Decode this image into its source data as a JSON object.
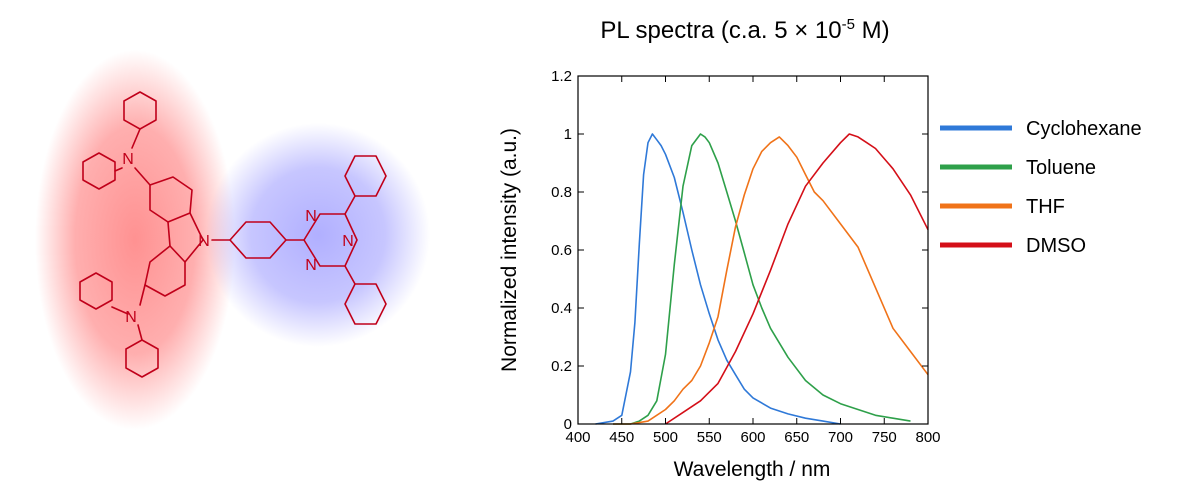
{
  "chart_data": {
    "type": "line",
    "title": "PL spectra (c.a. 5 × 10",
    "title_exp": "-5",
    "title_suffix": " M)",
    "xlabel": "Wavelength / nm",
    "ylabel": "Normalized intensity (a.u.)",
    "xlim": [
      400,
      800
    ],
    "ylim": [
      0,
      1.2
    ],
    "xticks": [
      400,
      450,
      500,
      550,
      600,
      650,
      700,
      750,
      800
    ],
    "xtick_labels": [
      "400",
      "450",
      "500",
      "550",
      "600",
      "650",
      "700",
      "750",
      "800"
    ],
    "yticks": [
      0,
      0.2,
      0.4,
      0.6,
      0.8,
      1,
      1.2
    ],
    "ytick_labels": [
      "0",
      "0.2",
      "0.4",
      "0.6",
      "0.8",
      "1",
      "1.2"
    ],
    "grid": false,
    "legend_position": "right",
    "series": [
      {
        "name": "Cyclohexane",
        "color": "#2f79d8",
        "x": [
          420,
          440,
          450,
          460,
          465,
          470,
          475,
          480,
          485,
          490,
          495,
          500,
          510,
          520,
          530,
          540,
          550,
          560,
          570,
          580,
          590,
          600,
          620,
          640,
          660,
          680,
          700
        ],
        "y": [
          0.0,
          0.01,
          0.03,
          0.18,
          0.35,
          0.62,
          0.86,
          0.97,
          1.0,
          0.98,
          0.96,
          0.93,
          0.85,
          0.73,
          0.6,
          0.48,
          0.38,
          0.29,
          0.22,
          0.17,
          0.12,
          0.09,
          0.055,
          0.035,
          0.02,
          0.01,
          0.0
        ]
      },
      {
        "name": "Toluene",
        "color": "#2ea04a",
        "x": [
          440,
          460,
          470,
          480,
          490,
          500,
          510,
          520,
          530,
          540,
          545,
          550,
          560,
          570,
          580,
          590,
          600,
          610,
          620,
          640,
          660,
          680,
          700,
          720,
          740,
          760,
          780
        ],
        "y": [
          0.0,
          0.0,
          0.01,
          0.03,
          0.08,
          0.24,
          0.55,
          0.82,
          0.96,
          1.0,
          0.99,
          0.97,
          0.9,
          0.8,
          0.7,
          0.59,
          0.48,
          0.4,
          0.33,
          0.23,
          0.15,
          0.1,
          0.07,
          0.05,
          0.03,
          0.02,
          0.01
        ]
      },
      {
        "name": "THF",
        "color": "#f07319",
        "x": [
          440,
          460,
          480,
          500,
          510,
          520,
          530,
          540,
          550,
          560,
          570,
          580,
          590,
          600,
          610,
          620,
          630,
          640,
          650,
          660,
          670,
          680,
          700,
          720,
          740,
          760,
          780,
          800
        ],
        "y": [
          0.0,
          0.0,
          0.01,
          0.05,
          0.08,
          0.12,
          0.15,
          0.2,
          0.28,
          0.37,
          0.53,
          0.68,
          0.79,
          0.88,
          0.94,
          0.97,
          0.99,
          0.96,
          0.92,
          0.86,
          0.8,
          0.77,
          0.69,
          0.61,
          0.47,
          0.33,
          0.25,
          0.17
        ]
      },
      {
        "name": "DMSO",
        "color": "#d40f18",
        "x": [
          500,
          520,
          540,
          560,
          580,
          600,
          620,
          640,
          660,
          680,
          700,
          710,
          720,
          730,
          740,
          760,
          780,
          800
        ],
        "y": [
          0.0,
          0.04,
          0.08,
          0.14,
          0.25,
          0.38,
          0.53,
          0.69,
          0.82,
          0.9,
          0.97,
          1.0,
          0.99,
          0.97,
          0.95,
          0.88,
          0.79,
          0.67
        ]
      }
    ]
  },
  "molecule": {
    "labels": {
      "n_top": "N",
      "n_bottom": "N",
      "n_carbazole": "N",
      "n_triazine_1": "N",
      "n_triazine_2": "N",
      "n_triazine_3": "N"
    },
    "donor_glow_color": "#ff6d6d",
    "acceptor_glow_color": "#8f8dff",
    "bond_color": "#c0001a"
  }
}
